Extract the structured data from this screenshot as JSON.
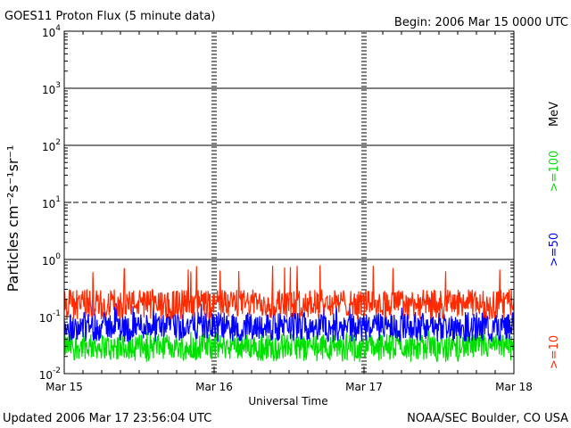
{
  "header": {
    "title": "GOES11 Proton Flux (5 minute data)",
    "begin": "Begin: 2006 Mar 15 0000 UTC"
  },
  "footer": {
    "updated": "Updated 2006 Mar 17 23:56:04 UTC",
    "credit": "NOAA/SEC Boulder, CO USA"
  },
  "chart_data": {
    "type": "line",
    "xlabel": "Universal Time",
    "ylabel": "Particles cm⁻²s⁻¹sr⁻¹",
    "yscale": "log",
    "ylim": [
      0.01,
      10000
    ],
    "xlim": [
      0,
      3
    ],
    "x_unit": "days since 2006 Mar 15 0000 UTC",
    "x_ticks": [
      "Mar 15",
      "Mar 16",
      "Mar 17",
      "Mar 18"
    ],
    "y_ticks": [
      {
        "base": "10",
        "exp": "-2"
      },
      {
        "base": "10",
        "exp": "-1"
      },
      {
        "base": "10",
        "exp": "0"
      },
      {
        "base": "10",
        "exp": "1"
      },
      {
        "base": "10",
        "exp": "2"
      },
      {
        "base": "10",
        "exp": "3"
      },
      {
        "base": "10",
        "exp": "4"
      }
    ],
    "grid": {
      "solid": [
        1,
        100,
        1000
      ],
      "dashed": [
        10
      ]
    },
    "series": [
      {
        "name": ">=10",
        "color": "#ff2a00",
        "typical_range": [
          0.1,
          0.3
        ],
        "peak": 0.8
      },
      {
        "name": ">=50",
        "color": "#0000ff",
        "typical_range": [
          0.04,
          0.12
        ],
        "peak": 0.2
      },
      {
        "name": ">=100",
        "color": "#00e000",
        "typical_range": [
          0.018,
          0.05
        ],
        "peak": 0.06
      }
    ],
    "unit_label": "MeV"
  }
}
